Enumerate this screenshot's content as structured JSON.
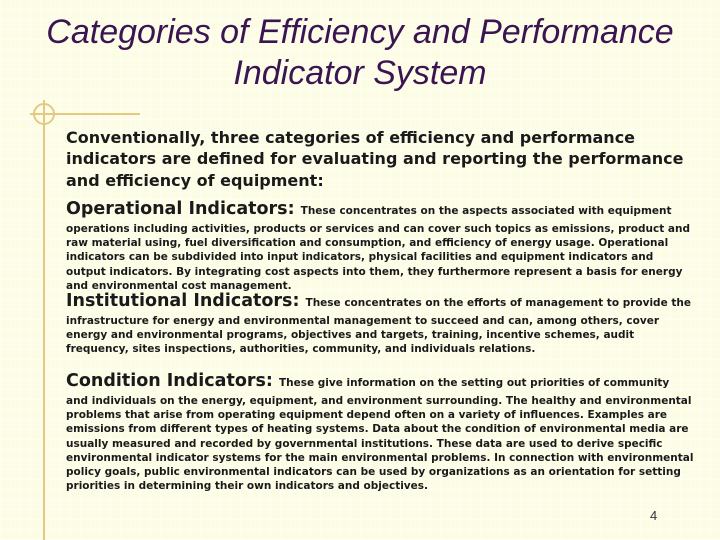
{
  "slide": {
    "title": "Categories of Efficiency and Performance Indicator System",
    "intro": "Conventionally, three categories of efficiency and performance indicators are defined for evaluating and reporting the performance and efficiency of equipment:",
    "operational": {
      "heading": "Operational Indicators",
      "separator": ": ",
      "text": "These concentrates on the aspects associated with equipment operations including activities, products or services and can cover such topics as emissions, product and raw material using, fuel diversification and consumption, and efficiency of energy usage. Operational indicators can be subdivided into input indicators, physical facilities and equipment indicators and output indicators. By integrating cost aspects into them, they furthermore represent a basis for energy and environmental cost management."
    },
    "institutional": {
      "heading": "Institutional Indicators",
      "separator": ": ",
      "text": "These concentrates on the efforts of management to provide the infrastructure for energy and environmental management to succeed and can, among others, cover energy and environmental programs, objectives and targets, training, incentive schemes, audit frequency, sites inspections, authorities, community, and individuals relations."
    },
    "condition": {
      "heading": "Condition Indicators",
      "separator": ": ",
      "text": "These give information on the setting out priorities of community and individuals on the energy, equipment, and environment surrounding. The healthy and environmental problems that arise from operating equipment depend often on a variety of influences. Examples are emissions from different types of heating systems. Data about the condition of environmental media are usually measured and recorded by governmental institutions. These data are used to derive specific environmental indicator systems for the main environmental problems. In connection with environmental policy goals, public environmental indicators can be used by organizations as an orientation for setting priorities in determining their own indicators and objectives."
    },
    "page_number": "4",
    "colors": {
      "title": "#3a1552",
      "accent_line": "#e3c982",
      "background": "#fdfde6"
    }
  }
}
